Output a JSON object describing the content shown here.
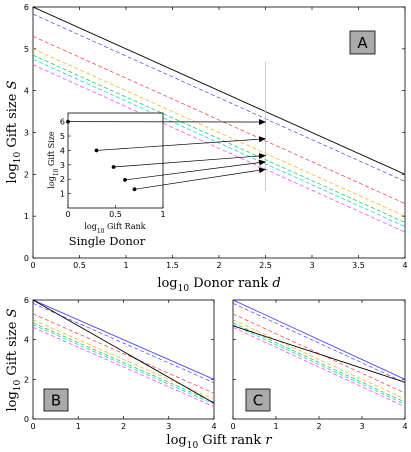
{
  "chart_data": [
    {
      "id": "A",
      "type": "line",
      "panel_label": "A",
      "xlabel": "log₁₀ Donor rank d",
      "xlabel_parts": [
        "log",
        "10",
        " Donor rank ",
        "d"
      ],
      "ylabel": "log₁₀ Gift size S",
      "ylabel_parts": [
        "log",
        "10",
        " Gift size ",
        "S"
      ],
      "xlim": [
        0,
        4
      ],
      "ylim": [
        0,
        6
      ],
      "xticks": [
        0,
        0.5,
        1,
        1.5,
        2,
        2.5,
        3,
        3.5,
        4
      ],
      "xtick_labels": [
        "0",
        "0.5",
        "1",
        "1.5",
        "2",
        "2.5",
        "3",
        "3.5",
        "4"
      ],
      "yticks": [
        0,
        1,
        2,
        3,
        4,
        5,
        6
      ],
      "ytick_labels": [
        "0",
        "1",
        "2",
        "3",
        "4",
        "5",
        "6"
      ],
      "marker_x": 2.5,
      "series": [
        {
          "color": "#000000",
          "style": "solid",
          "x": [
            0,
            4
          ],
          "y": [
            6.0,
            2.0
          ]
        },
        {
          "color": "#4444ff",
          "style": "dashed",
          "x": [
            0,
            4
          ],
          "y": [
            5.83,
            1.83
          ]
        },
        {
          "color": "#ff3333",
          "style": "dashed",
          "x": [
            0,
            4
          ],
          "y": [
            5.3,
            1.3
          ]
        },
        {
          "color": "#ffaa00",
          "style": "dashed",
          "x": [
            0,
            4
          ],
          "y": [
            5.0,
            1.0
          ]
        },
        {
          "color": "#00cc44",
          "style": "dashed",
          "x": [
            0,
            4
          ],
          "y": [
            4.85,
            0.85
          ]
        },
        {
          "color": "#00cccc",
          "style": "dashed",
          "x": [
            0,
            4
          ],
          "y": [
            4.75,
            0.75
          ]
        },
        {
          "color": "#ff33ff",
          "style": "dashed",
          "x": [
            0,
            4
          ],
          "y": [
            4.62,
            0.62
          ]
        }
      ]
    },
    {
      "id": "inset",
      "type": "scatter",
      "caption": "Single Donor",
      "xlabel_parts": [
        "log",
        "10",
        " Gift Rank"
      ],
      "ylabel_parts": [
        "log",
        "10",
        " Gift Size"
      ],
      "xlim": [
        0,
        1
      ],
      "ylim": [
        0,
        6.6
      ],
      "xticks": [
        0,
        0.5,
        1
      ],
      "xtick_labels": [
        "0",
        "0.5",
        "1"
      ],
      "yticks": [
        1,
        2,
        3,
        4,
        5,
        6
      ],
      "ytick_labels": [
        "1",
        "2",
        "3",
        "4",
        "5",
        "6"
      ],
      "x": [
        0,
        0.3,
        0.48,
        0.6,
        0.7
      ],
      "y": [
        6.0,
        4.0,
        2.85,
        1.95,
        1.3
      ],
      "arrow_targets_in_A": [
        {
          "x": 2.5,
          "y": 3.25
        },
        {
          "x": 2.5,
          "y": 2.85
        },
        {
          "x": 2.5,
          "y": 2.45
        },
        {
          "x": 2.5,
          "y": 2.3
        },
        {
          "x": 2.5,
          "y": 2.12
        }
      ]
    },
    {
      "id": "B",
      "type": "line",
      "panel_label": "B",
      "xlabel_parts": [
        "log",
        "10",
        " Gift rank ",
        "r"
      ],
      "ylabel_parts": [
        "log",
        "10",
        " Gift size ",
        "S"
      ],
      "xlim": [
        0,
        4
      ],
      "ylim": [
        0,
        6
      ],
      "xticks": [
        0,
        1,
        2,
        3,
        4
      ],
      "xtick_labels": [
        "0",
        "1",
        "2",
        "3",
        "4"
      ],
      "yticks": [
        0,
        2,
        4,
        6
      ],
      "ytick_labels": [
        "0",
        "2",
        "4",
        "6"
      ],
      "series": [
        {
          "color": "#4444ff",
          "style": "solid",
          "x": [
            0,
            4
          ],
          "y": [
            6.0,
            2.0
          ]
        },
        {
          "color": "#4444ff",
          "style": "dashed",
          "x": [
            0,
            4
          ],
          "y": [
            5.83,
            1.83
          ]
        },
        {
          "color": "#ff3333",
          "style": "dashed",
          "x": [
            0,
            4
          ],
          "y": [
            5.3,
            1.3
          ]
        },
        {
          "color": "#ffaa00",
          "style": "dashed",
          "x": [
            0,
            4
          ],
          "y": [
            5.0,
            1.0
          ]
        },
        {
          "color": "#00cc44",
          "style": "dashed",
          "x": [
            0,
            4
          ],
          "y": [
            4.85,
            0.85
          ]
        },
        {
          "color": "#00cccc",
          "style": "dashed",
          "x": [
            0,
            4
          ],
          "y": [
            4.75,
            0.75
          ]
        },
        {
          "color": "#ff33ff",
          "style": "dashed",
          "x": [
            0,
            4
          ],
          "y": [
            4.62,
            0.62
          ]
        },
        {
          "color": "#000000",
          "style": "solid",
          "x": [
            0,
            4
          ],
          "y": [
            6.0,
            0.8
          ]
        }
      ]
    },
    {
      "id": "C",
      "type": "line",
      "panel_label": "C",
      "xlim": [
        0,
        4
      ],
      "ylim": [
        0,
        6
      ],
      "xticks": [
        0,
        1,
        2,
        3,
        4
      ],
      "xtick_labels": [
        "0",
        "1",
        "2",
        "3",
        "4"
      ],
      "series": [
        {
          "color": "#4444ff",
          "style": "solid",
          "x": [
            0,
            4
          ],
          "y": [
            6.0,
            2.0
          ]
        },
        {
          "color": "#4444ff",
          "style": "dashed",
          "x": [
            0,
            4
          ],
          "y": [
            5.83,
            1.83
          ]
        },
        {
          "color": "#ff3333",
          "style": "dashed",
          "x": [
            0,
            4
          ],
          "y": [
            5.3,
            1.3
          ]
        },
        {
          "color": "#ffaa00",
          "style": "dashed",
          "x": [
            0,
            4
          ],
          "y": [
            5.0,
            1.0
          ]
        },
        {
          "color": "#00cc44",
          "style": "dashed",
          "x": [
            0,
            4
          ],
          "y": [
            4.85,
            0.85
          ]
        },
        {
          "color": "#00cccc",
          "style": "dashed",
          "x": [
            0,
            4
          ],
          "y": [
            4.75,
            0.75
          ]
        },
        {
          "color": "#ff33ff",
          "style": "dashed",
          "x": [
            0,
            4
          ],
          "y": [
            4.62,
            0.62
          ]
        },
        {
          "color": "#000000",
          "style": "solid",
          "x": [
            0,
            4
          ],
          "y": [
            4.7,
            1.85
          ]
        }
      ]
    }
  ]
}
